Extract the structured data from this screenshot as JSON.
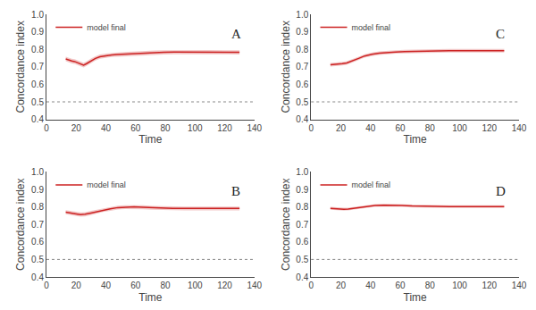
{
  "chart_data": [
    {
      "type": "line",
      "annotations": [
        "A"
      ],
      "xlabel": "Time",
      "ylabel": "Concordance index",
      "xlim": [
        0,
        140
      ],
      "ylim": [
        0.4,
        1.0
      ],
      "xticks": [
        0,
        20,
        40,
        60,
        80,
        100,
        120,
        140
      ],
      "yticks": [
        0.4,
        0.5,
        0.6,
        0.7,
        0.8,
        0.9,
        {
          "value": 1.0,
          "label": "1.0"
        }
      ],
      "grid": false,
      "legend": "upper left",
      "reference_line": 0.5,
      "x": [
        13,
        15,
        17,
        19,
        21,
        23,
        25,
        27,
        30,
        33,
        36,
        40,
        44,
        48,
        52,
        57,
        62,
        67,
        73,
        79,
        86,
        93,
        101,
        110,
        120,
        130
      ],
      "series": [
        {
          "name": "model final",
          "color": "#cc2222",
          "line_style": "solid",
          "values": [
            0.745,
            0.738,
            0.733,
            0.73,
            0.722,
            0.715,
            0.71,
            0.718,
            0.735,
            0.748,
            0.758,
            0.764,
            0.768,
            0.77,
            0.772,
            0.775,
            0.778,
            0.78,
            0.782,
            0.783,
            0.784,
            0.784,
            0.784,
            0.784,
            0.783,
            0.783
          ],
          "upper": [
            0.758,
            0.751,
            0.746,
            0.743,
            0.735,
            0.728,
            0.723,
            0.731,
            0.748,
            0.76,
            0.77,
            0.776,
            0.78,
            0.782,
            0.784,
            0.787,
            0.79,
            0.792,
            0.794,
            0.795,
            0.796,
            0.796,
            0.796,
            0.796,
            0.795,
            0.795
          ],
          "lower": [
            0.732,
            0.725,
            0.72,
            0.717,
            0.709,
            0.702,
            0.697,
            0.705,
            0.722,
            0.736,
            0.746,
            0.752,
            0.756,
            0.758,
            0.76,
            0.763,
            0.766,
            0.768,
            0.77,
            0.771,
            0.772,
            0.772,
            0.772,
            0.772,
            0.771,
            0.771
          ]
        }
      ]
    },
    {
      "type": "line",
      "annotations": [
        "C"
      ],
      "xlabel": "Time",
      "ylabel": "Concordance index",
      "xlim": [
        0,
        140
      ],
      "ylim": [
        0.4,
        1.0
      ],
      "xticks": [
        0,
        20,
        40,
        60,
        80,
        100,
        120,
        140
      ],
      "yticks": [
        0.4,
        0.5,
        0.6,
        0.7,
        0.8,
        0.9,
        {
          "value": 1.0,
          "label": "1.0"
        }
      ],
      "grid": false,
      "legend": "upper left",
      "reference_line": 0.5,
      "x": [
        13,
        15,
        18,
        21,
        24,
        28,
        32,
        36,
        41,
        46,
        51,
        57,
        63,
        70,
        77,
        85,
        93,
        102,
        111,
        121,
        130
      ],
      "series": [
        {
          "name": "model final",
          "color": "#cc2222",
          "line_style": "solid",
          "values": [
            0.712,
            0.713,
            0.715,
            0.718,
            0.722,
            0.733,
            0.748,
            0.762,
            0.772,
            0.778,
            0.782,
            0.785,
            0.787,
            0.789,
            0.79,
            0.791,
            0.792,
            0.792,
            0.792,
            0.792,
            0.792
          ],
          "upper": [
            0.722,
            0.723,
            0.725,
            0.728,
            0.732,
            0.743,
            0.758,
            0.772,
            0.782,
            0.788,
            0.792,
            0.795,
            0.797,
            0.799,
            0.8,
            0.801,
            0.802,
            0.802,
            0.802,
            0.802,
            0.802
          ],
          "lower": [
            0.702,
            0.703,
            0.705,
            0.708,
            0.712,
            0.723,
            0.738,
            0.752,
            0.762,
            0.768,
            0.772,
            0.775,
            0.777,
            0.779,
            0.78,
            0.781,
            0.782,
            0.782,
            0.782,
            0.782,
            0.782
          ]
        }
      ]
    },
    {
      "type": "line",
      "annotations": [
        "B"
      ],
      "xlabel": "Time",
      "ylabel": "Concordance index",
      "xlim": [
        0,
        140
      ],
      "ylim": [
        0.4,
        1.0
      ],
      "xticks": [
        0,
        20,
        40,
        60,
        80,
        100,
        120,
        140
      ],
      "yticks": [
        0.4,
        0.5,
        0.6,
        0.7,
        0.8,
        0.9,
        {
          "value": 1.0,
          "label": "1.0"
        }
      ],
      "grid": false,
      "legend": "upper left",
      "reference_line": 0.5,
      "x": [
        13,
        15,
        17,
        20,
        23,
        26,
        30,
        34,
        38,
        43,
        48,
        53,
        59,
        65,
        71,
        78,
        85,
        93,
        101,
        110,
        120,
        130
      ],
      "series": [
        {
          "name": "model final",
          "color": "#cc2222",
          "line_style": "solid",
          "values": [
            0.77,
            0.768,
            0.765,
            0.76,
            0.756,
            0.758,
            0.765,
            0.773,
            0.782,
            0.789,
            0.796,
            0.799,
            0.8,
            0.798,
            0.795,
            0.793,
            0.791,
            0.791,
            0.791,
            0.791,
            0.791,
            0.791
          ],
          "upper": [
            0.782,
            0.78,
            0.777,
            0.772,
            0.768,
            0.77,
            0.777,
            0.784,
            0.793,
            0.8,
            0.807,
            0.81,
            0.811,
            0.809,
            0.806,
            0.804,
            0.802,
            0.802,
            0.802,
            0.802,
            0.802,
            0.802
          ],
          "lower": [
            0.758,
            0.756,
            0.753,
            0.748,
            0.744,
            0.746,
            0.753,
            0.762,
            0.771,
            0.778,
            0.785,
            0.788,
            0.789,
            0.787,
            0.784,
            0.782,
            0.78,
            0.78,
            0.78,
            0.78,
            0.78,
            0.78
          ]
        }
      ]
    },
    {
      "type": "line",
      "annotations": [
        "D"
      ],
      "xlabel": "Time",
      "ylabel": "Concordance index",
      "xlim": [
        0,
        140
      ],
      "ylim": [
        0.4,
        1.0
      ],
      "xticks": [
        0,
        20,
        40,
        60,
        80,
        100,
        120,
        140
      ],
      "yticks": [
        0.4,
        0.5,
        0.6,
        0.7,
        0.8,
        0.9,
        {
          "value": 1.0,
          "label": "1.0"
        }
      ],
      "grid": false,
      "legend": "upper left",
      "reference_line": 0.5,
      "x": [
        13,
        16,
        19,
        22,
        25,
        29,
        33,
        38,
        43,
        49,
        55,
        61,
        68,
        76,
        84,
        93,
        102,
        113,
        123,
        130
      ],
      "series": [
        {
          "name": "model final",
          "color": "#cc2222",
          "line_style": "solid",
          "values": [
            0.792,
            0.79,
            0.788,
            0.787,
            0.788,
            0.792,
            0.798,
            0.803,
            0.808,
            0.81,
            0.81,
            0.808,
            0.805,
            0.803,
            0.802,
            0.802,
            0.802,
            0.802,
            0.802,
            0.802
          ],
          "upper": [
            0.8,
            0.798,
            0.796,
            0.795,
            0.796,
            0.8,
            0.806,
            0.811,
            0.816,
            0.818,
            0.818,
            0.816,
            0.813,
            0.811,
            0.81,
            0.81,
            0.81,
            0.81,
            0.81,
            0.81
          ],
          "lower": [
            0.784,
            0.782,
            0.78,
            0.779,
            0.78,
            0.784,
            0.79,
            0.795,
            0.8,
            0.802,
            0.802,
            0.8,
            0.797,
            0.795,
            0.794,
            0.794,
            0.794,
            0.794,
            0.794,
            0.794
          ]
        }
      ]
    }
  ]
}
